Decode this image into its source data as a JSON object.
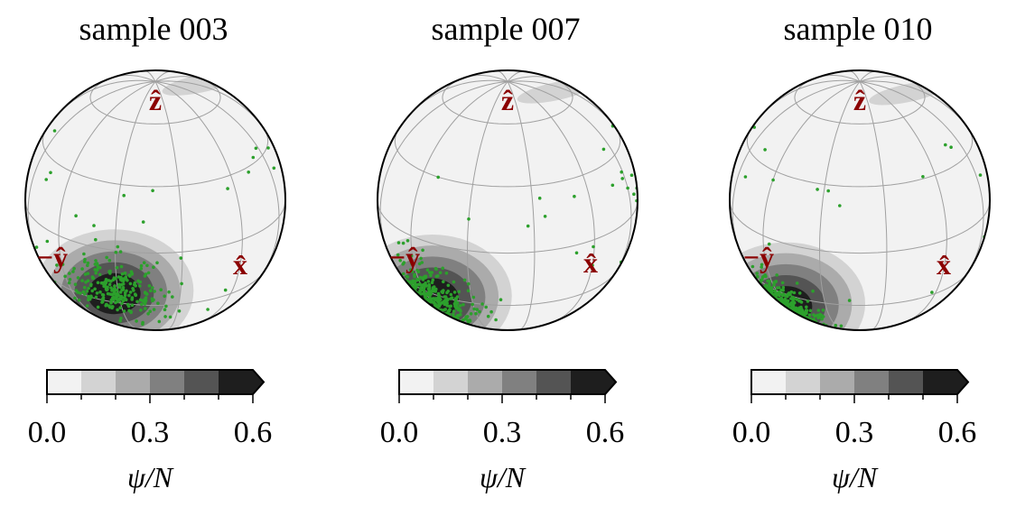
{
  "chart_data": [
    {
      "type": "heatmap",
      "title": "sample 003",
      "axis_labels": {
        "z": "ẑ",
        "y": "−ŷ",
        "x": "x̂"
      },
      "density_peak_lonlat": [
        28,
        -22
      ],
      "colorbar": {
        "label": "ψ/N",
        "ticks": [
          "0.0",
          "0.3",
          "0.6"
        ],
        "levels": [
          0.0,
          0.1,
          0.2,
          0.3,
          0.4,
          0.5,
          0.6
        ],
        "extend": "max"
      },
      "points_color": "#2ca02c"
    },
    {
      "type": "heatmap",
      "title": "sample 007",
      "axis_labels": {
        "z": "ẑ",
        "y": "−ŷ",
        "x": "x̂"
      },
      "density_peak_lonlat": [
        5,
        -32
      ],
      "colorbar": {
        "label": "ψ/N",
        "ticks": [
          "0.0",
          "0.3",
          "0.6"
        ],
        "levels": [
          0.0,
          0.1,
          0.2,
          0.3,
          0.4,
          0.5,
          0.6
        ],
        "extend": "max"
      },
      "points_color": "#2ca02c"
    },
    {
      "type": "heatmap",
      "title": "sample 010",
      "axis_labels": {
        "z": "ẑ",
        "y": "−ŷ",
        "x": "x̂"
      },
      "density_peak_lonlat": [
        0,
        -40
      ],
      "colorbar": {
        "label": "ψ/N",
        "ticks": [
          "0.0",
          "0.3",
          "0.6"
        ],
        "levels": [
          0.0,
          0.1,
          0.2,
          0.3,
          0.4,
          0.5,
          0.6
        ],
        "extend": "max"
      },
      "points_color": "#2ca02c"
    }
  ],
  "colors": {
    "levels": [
      "#f2f2f2",
      "#d3d3d3",
      "#ababab",
      "#808080",
      "#545454",
      "#1e1e1e"
    ],
    "sphere_bg": "#f2f2f2",
    "axis_label": "#8b0000",
    "points": "#2ca02c",
    "grid": "#a0a0a0"
  }
}
